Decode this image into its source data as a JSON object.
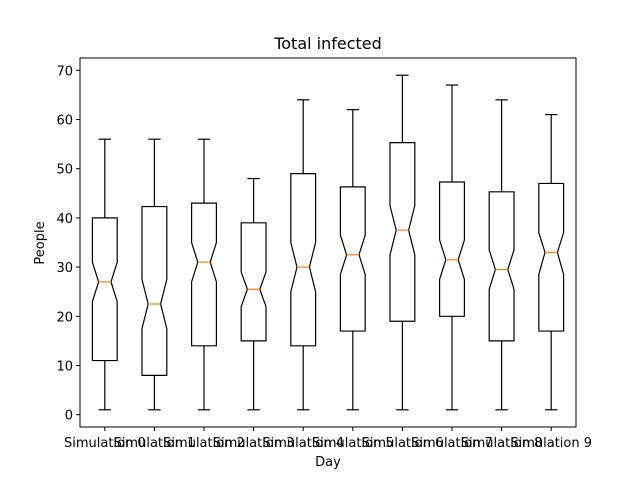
{
  "chart_data": {
    "type": "boxplot",
    "notched": true,
    "title": "Total infected",
    "xlabel": "Day",
    "ylabel": "People",
    "ylim": [
      -2.5,
      72.5
    ],
    "yticks": [
      0,
      10,
      20,
      30,
      40,
      50,
      60,
      70
    ],
    "grid": false,
    "colors": {
      "box": "#000000",
      "median": "#ff7f0e"
    },
    "categories": [
      "Simulation 0",
      "Simulation 1",
      "Simulation 2",
      "Simulation 3",
      "Simulation 4",
      "Simulation 5",
      "Simulation 6",
      "Simulation 7",
      "Simulation 8",
      "Simulation 9"
    ],
    "boxes": [
      {
        "whislo": 1,
        "q1": 11,
        "med": 27,
        "q3": 40,
        "whishi": 56,
        "notch_lo": 23,
        "notch_hi": 31
      },
      {
        "whislo": 1,
        "q1": 8,
        "med": 22.5,
        "q3": 42.3,
        "whishi": 56,
        "notch_lo": 17.5,
        "notch_hi": 27.5
      },
      {
        "whislo": 1,
        "q1": 14,
        "med": 31,
        "q3": 43,
        "whishi": 56,
        "notch_lo": 27,
        "notch_hi": 35
      },
      {
        "whislo": 1,
        "q1": 15,
        "med": 25.5,
        "q3": 39,
        "whishi": 48,
        "notch_lo": 22,
        "notch_hi": 29
      },
      {
        "whislo": 1,
        "q1": 14,
        "med": 30,
        "q3": 49,
        "whishi": 64,
        "notch_lo": 25,
        "notch_hi": 35
      },
      {
        "whislo": 1,
        "q1": 17,
        "med": 32.5,
        "q3": 46.3,
        "whishi": 62,
        "notch_lo": 28.5,
        "notch_hi": 36.5
      },
      {
        "whislo": 1,
        "q1": 19,
        "med": 37.5,
        "q3": 55.3,
        "whishi": 69,
        "notch_lo": 32.5,
        "notch_hi": 42.5
      },
      {
        "whislo": 1,
        "q1": 20,
        "med": 31.5,
        "q3": 47.3,
        "whishi": 67,
        "notch_lo": 27.5,
        "notch_hi": 35.5
      },
      {
        "whislo": 1,
        "q1": 15,
        "med": 29.5,
        "q3": 45.3,
        "whishi": 64,
        "notch_lo": 25.5,
        "notch_hi": 33.5
      },
      {
        "whislo": 1,
        "q1": 17,
        "med": 33,
        "q3": 47,
        "whishi": 61,
        "notch_lo": 28.5,
        "notch_hi": 37
      }
    ]
  }
}
